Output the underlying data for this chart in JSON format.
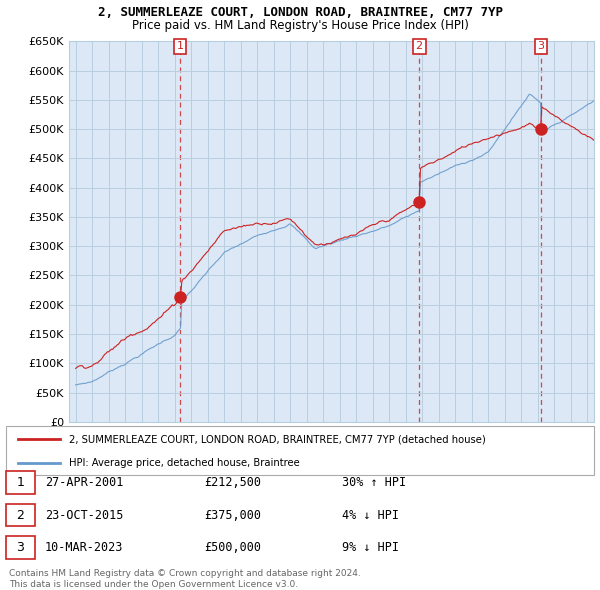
{
  "title1": "2, SUMMERLEAZE COURT, LONDON ROAD, BRAINTREE, CM77 7YP",
  "title2": "Price paid vs. HM Land Registry's House Price Index (HPI)",
  "red_label": "2, SUMMERLEAZE COURT, LONDON ROAD, BRAINTREE, CM77 7YP (detached house)",
  "blue_label": "HPI: Average price, detached house, Braintree",
  "transactions": [
    {
      "num": 1,
      "date": "27-APR-2001",
      "price": "£212,500",
      "hpi": "30% ↑ HPI",
      "year": 2001.32,
      "value": 212500
    },
    {
      "num": 2,
      "date": "23-OCT-2015",
      "price": "£375,000",
      "hpi": "4% ↓ HPI",
      "year": 2015.81,
      "value": 375000
    },
    {
      "num": 3,
      "date": "10-MAR-2023",
      "price": "£500,000",
      "hpi": "9% ↓ HPI",
      "year": 2023.19,
      "value": 500000
    }
  ],
  "ylim": [
    0,
    650000
  ],
  "xlim": [
    1994.6,
    2026.4
  ],
  "yticks": [
    0,
    50000,
    100000,
    150000,
    200000,
    250000,
    300000,
    350000,
    400000,
    450000,
    500000,
    550000,
    600000,
    650000
  ],
  "ytick_labels": [
    "£0",
    "£50K",
    "£100K",
    "£150K",
    "£200K",
    "£250K",
    "£300K",
    "£350K",
    "£400K",
    "£450K",
    "£500K",
    "£550K",
    "£600K",
    "£650K"
  ],
  "background_color": "#ffffff",
  "chart_bg_color": "#dce8f5",
  "grid_color": "#b8cfe0",
  "red_color": "#cc2222",
  "blue_color": "#6699cc",
  "footnote": "Contains HM Land Registry data © Crown copyright and database right 2024.\nThis data is licensed under the Open Government Licence v3.0."
}
